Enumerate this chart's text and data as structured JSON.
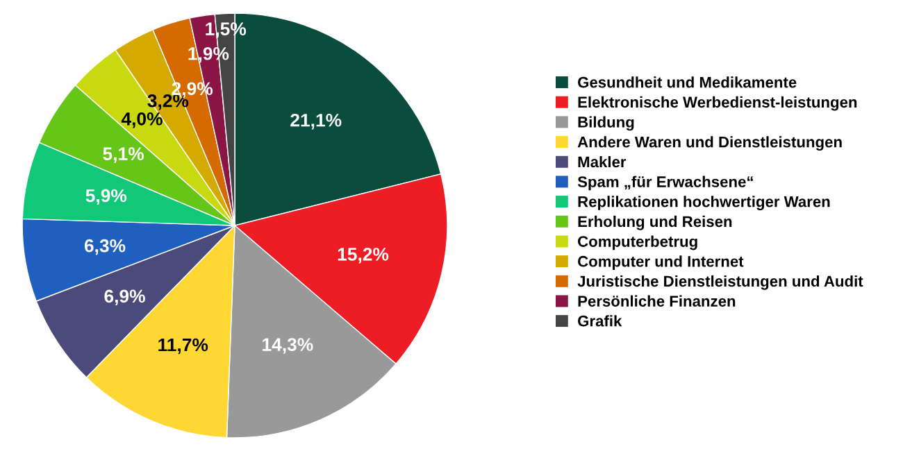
{
  "chart_data": {
    "type": "pie",
    "categories": [
      "Gesundheit und Medikamente",
      "Elektronische Werbedienst-leistungen",
      "Bildung",
      "Andere Waren und Dienstleistungen",
      "Makler",
      "Spam „für Erwachsene“",
      "Replikationen hochwertiger Waren",
      "Erholung und Reisen",
      "Computerbetrug",
      "Computer und Internet",
      "Juristische Dienstleistungen und Audit",
      "Persönliche Finanzen",
      "Grafik"
    ],
    "values": [
      21.1,
      15.2,
      14.3,
      11.7,
      6.9,
      6.3,
      5.9,
      5.1,
      4.0,
      3.2,
      2.9,
      1.9,
      1.5
    ],
    "value_labels": [
      "21,1%",
      "15,2%",
      "14,3%",
      "11,7%",
      "6,9%",
      "6,3%",
      "5,9%",
      "5,1%",
      "4,0%",
      "3,2%",
      "2,9%",
      "1,9%",
      "1,5%"
    ],
    "colors": [
      "#0b4d3c",
      "#ee1c24",
      "#999999",
      "#ffd733",
      "#4b4a7a",
      "#1f5fc0",
      "#10c878",
      "#66c617",
      "#c8d910",
      "#d4aa00",
      "#d46a00",
      "#8b1545",
      "#444444"
    ],
    "legend": "right"
  }
}
